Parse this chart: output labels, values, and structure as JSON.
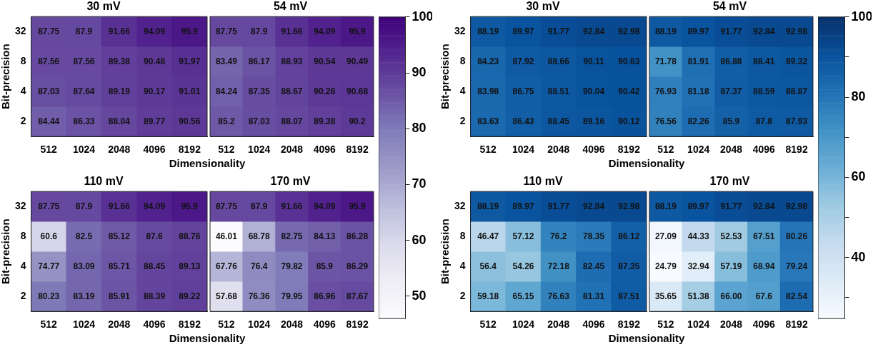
{
  "chart_data": [
    {
      "type": "heatmap",
      "title": "30 mV",
      "ylabel": "Bit-precision",
      "xlabel": "Dimensionality",
      "categories": [
        "512",
        "1024",
        "2048",
        "4096",
        "8192"
      ],
      "y_categories": [
        "32",
        "8",
        "4",
        "2"
      ],
      "cells": [
        [
          87.75,
          87.9,
          91.66,
          94.09,
          95.9
        ],
        [
          87.56,
          87.56,
          89.38,
          90.48,
          91.97
        ],
        [
          87.03,
          87.64,
          89.19,
          90.17,
          91.01
        ],
        [
          84.44,
          86.33,
          88.04,
          89.77,
          90.56
        ]
      ],
      "data_labels": true
    },
    {
      "type": "heatmap",
      "title": "54 mV",
      "categories": [
        "512",
        "1024",
        "2048",
        "4096",
        "8192"
      ],
      "y_categories": [
        "32",
        "8",
        "4",
        "2"
      ],
      "cells": [
        [
          87.75,
          87.9,
          91.66,
          94.09,
          95.9
        ],
        [
          83.49,
          86.17,
          88.93,
          90.54,
          90.49
        ],
        [
          84.24,
          87.35,
          88.67,
          90.28,
          90.68
        ],
        [
          85.2,
          87.03,
          88.07,
          89.38,
          90.2
        ]
      ],
      "data_labels": true,
      "tick_labels": "x"
    },
    {
      "type": "heatmap",
      "title": "110 mV",
      "ylabel": "Bit-precision",
      "xlabel": "Dimensionality",
      "categories": [
        "512",
        "1024",
        "2048",
        "4096",
        "8192"
      ],
      "y_categories": [
        "32",
        "8",
        "4",
        "2"
      ],
      "cells": [
        [
          87.75,
          87.9,
          91.66,
          94.09,
          95.9
        ],
        [
          60.6,
          82.5,
          85.12,
          87.6,
          88.76
        ],
        [
          74.77,
          83.09,
          85.71,
          88.45,
          89.13
        ],
        [
          80.23,
          83.19,
          85.91,
          88.39,
          89.22
        ]
      ],
      "data_labels": true
    },
    {
      "type": "heatmap",
      "title": "170 mV",
      "categories": [
        "512",
        "1024",
        "2048",
        "4096",
        "8192"
      ],
      "y_categories": [
        "32",
        "8",
        "4",
        "2"
      ],
      "cells": [
        [
          87.75,
          87.9,
          91.66,
          94.09,
          95.9
        ],
        [
          46.01,
          68.78,
          82.75,
          84.13,
          86.28
        ],
        [
          67.76,
          76.4,
          79.82,
          85.9,
          86.29
        ],
        [
          57.68,
          76.36,
          79.95,
          86.96,
          87.67
        ]
      ],
      "clim": [
        46.01,
        100
      ],
      "cticks": [
        50,
        60,
        70,
        80,
        90,
        100
      ],
      "colors": [
        "#fcfbfd",
        "#efedf5",
        "#dadaeb",
        "#bcbddc",
        "#9e9ac8",
        "#807dba",
        "#6a51a3",
        "#54278f",
        "#3f007d"
      ],
      "data_labels": true,
      "tick_labels": "x"
    },
    {
      "type": "heatmap",
      "title": "30 mV",
      "ylabel": "Bit-precision",
      "xlabel": "Dimensionality",
      "categories": [
        "512",
        "1024",
        "2048",
        "4096",
        "8192"
      ],
      "y_categories": [
        "32",
        "8",
        "4",
        "2"
      ],
      "cells": [
        [
          88.19,
          89.97,
          91.77,
          92.84,
          92.98
        ],
        [
          84.23,
          87.92,
          88.66,
          90.11,
          90.63
        ],
        [
          83.98,
          86.75,
          88.51,
          90.04,
          90.42
        ],
        [
          83.63,
          86.43,
          88.45,
          89.16,
          90.12
        ]
      ],
      "data_labels": true
    },
    {
      "type": "heatmap",
      "title": "54 mV",
      "categories": [
        "512",
        "1024",
        "2048",
        "4096",
        "8192"
      ],
      "y_categories": [
        "32",
        "8",
        "4",
        "2"
      ],
      "cells": [
        [
          88.19,
          89.97,
          91.77,
          92.84,
          92.98
        ],
        [
          71.78,
          81.91,
          86.88,
          88.41,
          89.32
        ],
        [
          76.93,
          81.18,
          87.37,
          88.59,
          88.87
        ],
        [
          76.56,
          82.26,
          85.9,
          87.8,
          87.93
        ]
      ],
      "data_labels": true,
      "tick_labels": "x"
    },
    {
      "type": "heatmap",
      "title": "110 mV",
      "ylabel": "Bit-precision",
      "xlabel": "Dimensionality",
      "categories": [
        "512",
        "1024",
        "2048",
        "4096",
        "8192"
      ],
      "y_categories": [
        "32",
        "8",
        "4",
        "2"
      ],
      "cells": [
        [
          88.19,
          89.97,
          91.77,
          92.84,
          92.98
        ],
        [
          46.47,
          57.12,
          76.2,
          78.35,
          86.12
        ],
        [
          56.4,
          54.26,
          72.18,
          82.45,
          87.35
        ],
        [
          59.18,
          65.15,
          76.63,
          81.31,
          87.51
        ]
      ],
      "data_labels": true
    },
    {
      "type": "heatmap",
      "title": "170 mV",
      "categories": [
        "512",
        "1024",
        "2048",
        "4096",
        "8192"
      ],
      "y_categories": [
        "32",
        "8",
        "4",
        "2"
      ],
      "cells": [
        [
          88.19,
          89.97,
          91.77,
          92.84,
          92.98
        ],
        [
          27.09,
          44.33,
          52.53,
          67.51,
          80.26
        ],
        [
          24.79,
          32.94,
          57.19,
          68.94,
          79.24
        ],
        [
          35.65,
          51.38,
          66,
          67.6,
          82.54
        ]
      ],
      "cell_labels": [
        [
          "88.19",
          "89.97",
          "91.77",
          "92.84",
          "92.98"
        ],
        [
          "27.09",
          "44.33",
          "52.53",
          "67.51",
          "80.26"
        ],
        [
          "24.79",
          "32.94",
          "57.19",
          "68.94",
          "79.24"
        ],
        [
          "35.65",
          "51.38",
          "66.00",
          "67.6",
          "82.54"
        ]
      ],
      "clim": [
        24.79,
        100
      ],
      "cticks": [
        {
          "value": 30,
          "label": null
        },
        40,
        {
          "value": 50,
          "label": null
        },
        60,
        {
          "value": 70,
          "label": null
        },
        80,
        {
          "value": 90,
          "label": null
        },
        100
      ],
      "colors": [
        "#f7fbff",
        "#deebf7",
        "#c6dbef",
        "#9ecae1",
        "#6baed6",
        "#4292c6",
        "#2171b5",
        "#08519c",
        "#08306b"
      ],
      "data_labels": true,
      "tick_labels": "x"
    }
  ]
}
